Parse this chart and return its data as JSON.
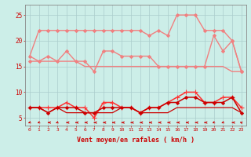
{
  "x": [
    0,
    1,
    2,
    3,
    4,
    5,
    6,
    7,
    8,
    9,
    10,
    11,
    12,
    13,
    14,
    15,
    16,
    17,
    18,
    19,
    20,
    21,
    22,
    23
  ],
  "series": [
    {
      "name": "rafales_top",
      "color": "#F08080",
      "linewidth": 1.0,
      "marker": "D",
      "markersize": 2,
      "values": [
        17,
        22,
        22,
        22,
        22,
        22,
        22,
        22,
        22,
        22,
        22,
        22,
        22,
        21,
        22,
        21,
        25,
        25,
        25,
        22,
        22,
        22,
        20,
        14
      ]
    },
    {
      "name": "rafales_mid",
      "color": "#F08080",
      "linewidth": 1.0,
      "marker": "D",
      "markersize": 2,
      "values": [
        16,
        16,
        17,
        16,
        18,
        16,
        16,
        14,
        18,
        18,
        17,
        17,
        17,
        17,
        15,
        15,
        15,
        15,
        15,
        15,
        21,
        18,
        20,
        14
      ]
    },
    {
      "name": "rafales_low",
      "color": "#F08080",
      "linewidth": 1.0,
      "marker": null,
      "values": [
        17,
        16,
        16,
        16,
        16,
        16,
        15,
        15,
        15,
        15,
        15,
        15,
        15,
        15,
        15,
        15,
        15,
        15,
        15,
        15,
        15,
        15,
        14,
        14
      ]
    },
    {
      "name": "vent_max",
      "color": "#FF3333",
      "linewidth": 1.1,
      "marker": "+",
      "markersize": 4,
      "values": [
        7,
        7,
        7,
        7,
        8,
        7,
        7,
        5,
        8,
        8,
        7,
        7,
        6,
        7,
        7,
        8,
        9,
        10,
        10,
        8,
        8,
        9,
        9,
        7
      ]
    },
    {
      "name": "vent_moyen",
      "color": "#CC0000",
      "linewidth": 1.1,
      "marker": "D",
      "markersize": 2,
      "values": [
        7,
        7,
        6,
        7,
        7,
        7,
        6,
        6,
        7,
        7,
        7,
        7,
        6,
        7,
        7,
        8,
        8,
        9,
        9,
        8,
        8,
        8,
        9,
        6
      ]
    },
    {
      "name": "vent_min",
      "color": "#CC0000",
      "linewidth": 0.9,
      "marker": null,
      "values": [
        7,
        7,
        6,
        7,
        6,
        6,
        6,
        6,
        6,
        6,
        7,
        7,
        6,
        6,
        6,
        6,
        7,
        7,
        7,
        7,
        7,
        7,
        7,
        6
      ]
    }
  ],
  "wind_dirs": [
    225,
    225,
    270,
    225,
    270,
    270,
    270,
    270,
    270,
    270,
    270,
    270,
    270,
    270,
    270,
    270,
    270,
    270,
    270,
    270,
    225,
    225,
    270,
    315
  ],
  "xlabel": "Vent moyen/en rafales ( km/h )",
  "yticks": [
    5,
    10,
    15,
    20,
    25
  ],
  "xticks": [
    0,
    1,
    2,
    3,
    4,
    5,
    6,
    7,
    8,
    9,
    10,
    11,
    12,
    13,
    14,
    15,
    16,
    17,
    18,
    19,
    20,
    21,
    22,
    23
  ],
  "xlim": [
    -0.5,
    23.5
  ],
  "ylim": [
    3.5,
    27
  ],
  "bg_color": "#CCEEE8",
  "grid_color": "#AACCCC",
  "label_color": "#CC0000",
  "arrow_color": "#CC0000"
}
